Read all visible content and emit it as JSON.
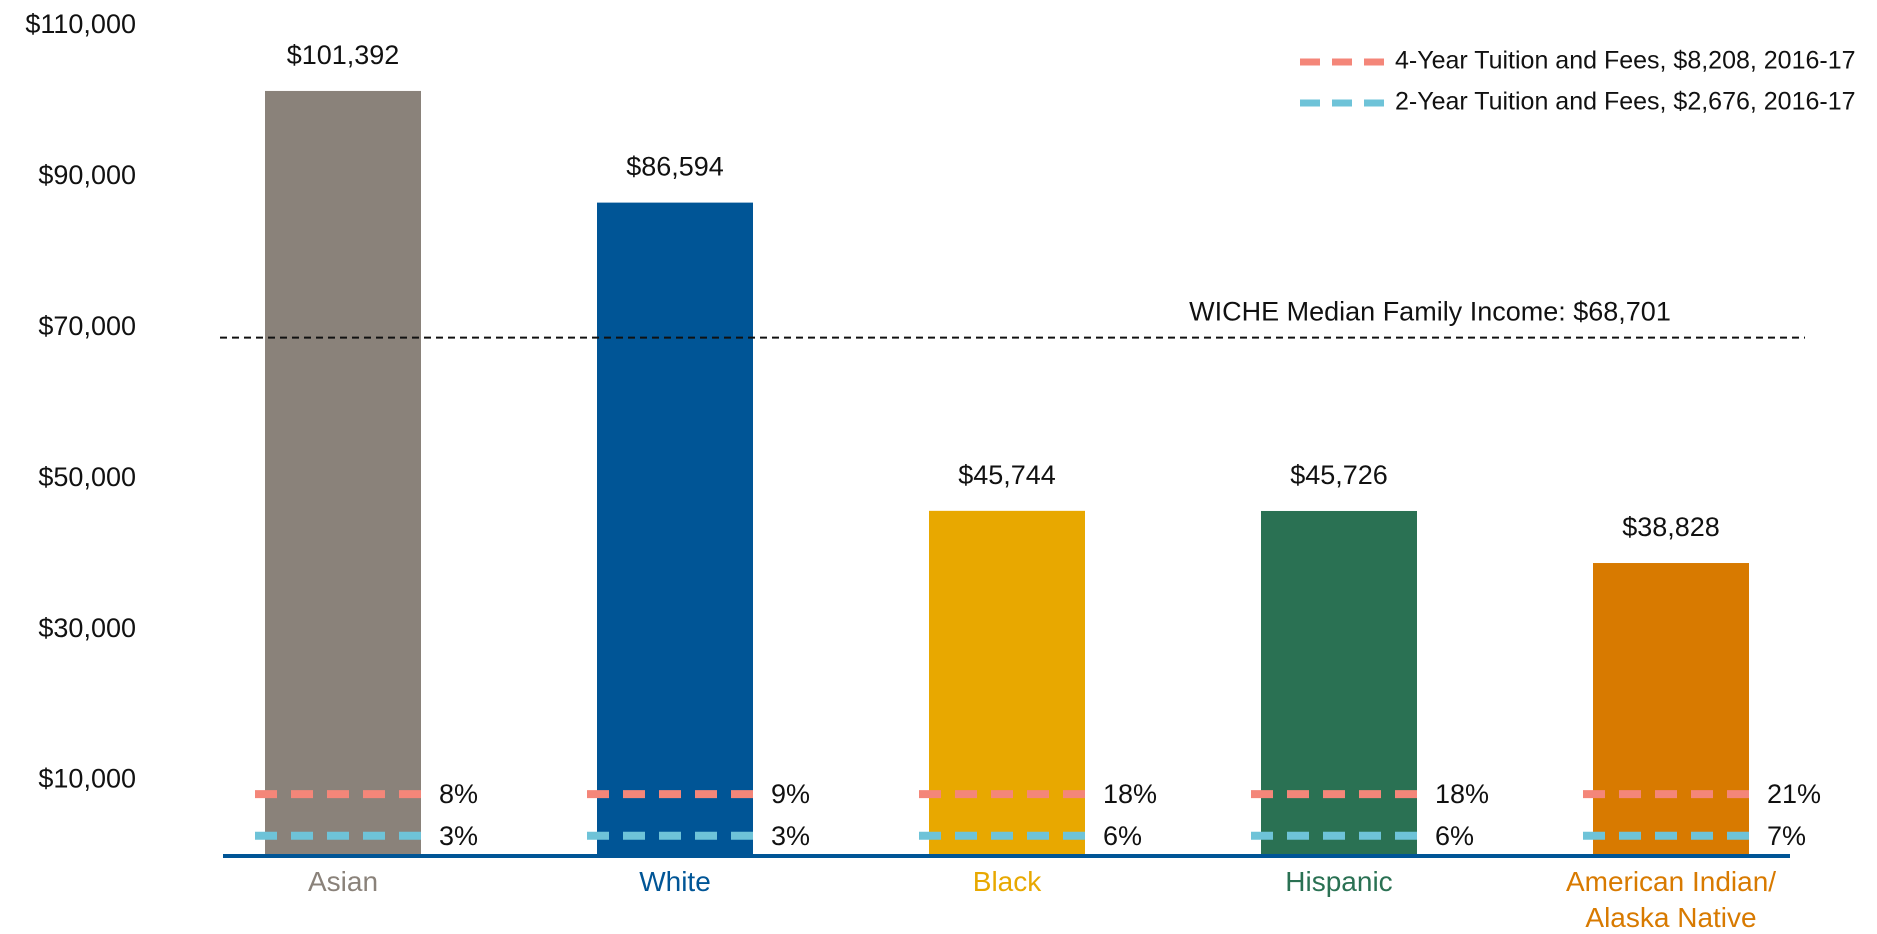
{
  "chart_data": {
    "type": "bar",
    "categories": [
      "Asian",
      "White",
      "Black",
      "Hispanic",
      "American Indian/ Alaska Native"
    ],
    "values": [
      101392,
      86594,
      45744,
      45726,
      38828
    ],
    "value_labels": [
      "$101,392",
      "$86,594",
      "$45,744",
      "$45,726",
      "$38,828"
    ],
    "colors": [
      "#8a827a",
      "#005596",
      "#e8a800",
      "#2a7153",
      "#d87a00"
    ],
    "ylim": [
      0,
      110000
    ],
    "yticks": [
      {
        "value": 10000,
        "label": "$10,000"
      },
      {
        "value": 30000,
        "label": "$30,000"
      },
      {
        "value": 50000,
        "label": "$50,000"
      },
      {
        "value": 70000,
        "label": "$70,000"
      },
      {
        "value": 90000,
        "label": "$90,000"
      },
      {
        "value": 110000,
        "label": "$110,000"
      }
    ],
    "reference_line": {
      "value": 68701,
      "label": "WICHE Median Family Income: $68,701"
    },
    "tuition": [
      {
        "name": "4-Year Tuition and Fees, $8,208, 2016-17",
        "value": 8208,
        "color": "#f48679",
        "shares": [
          8,
          9,
          18,
          18,
          21
        ],
        "share_labels": [
          "8%",
          "9%",
          "18%",
          "18%",
          "21%"
        ]
      },
      {
        "name": "2-Year Tuition and Fees, $2,676, 2016-17",
        "value": 2676,
        "color": "#6ec3d8",
        "shares": [
          3,
          3,
          6,
          6,
          7
        ],
        "share_labels": [
          "3%",
          "3%",
          "6%",
          "6%",
          "7%"
        ]
      }
    ]
  }
}
